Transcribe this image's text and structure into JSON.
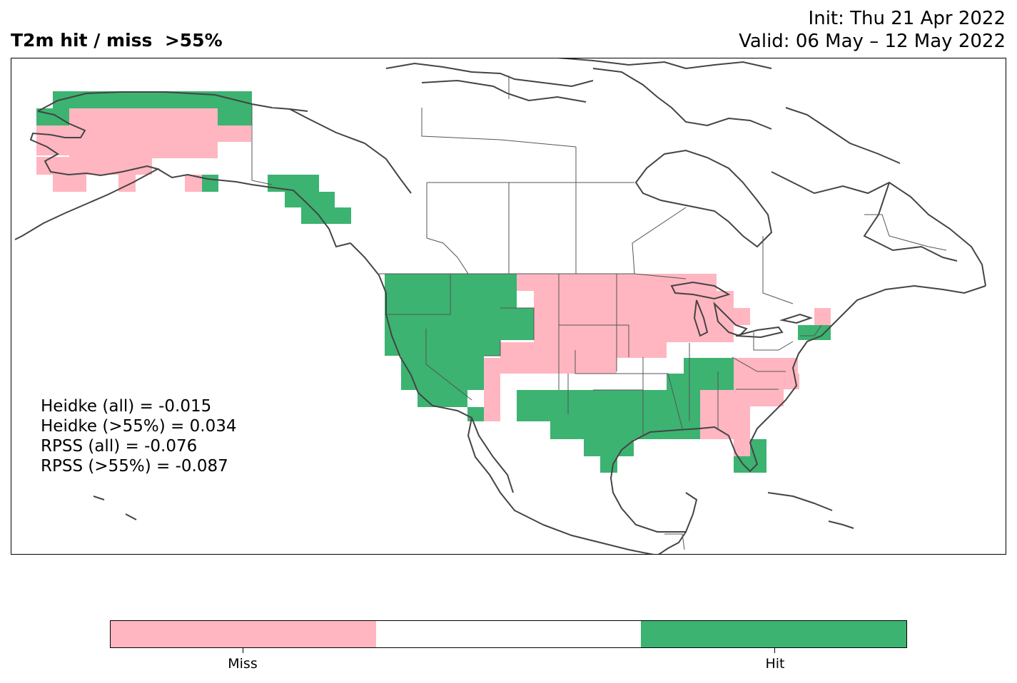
{
  "title": "T2m hit / miss  >55%",
  "init": "Init: Thu 21 Apr 2022",
  "valid": "Valid: 06 May – 12 May 2022",
  "scores": [
    "Heidke (all) = -0.015",
    "Heidke (>55%) = 0.034",
    "RPSS (all) = -0.076",
    "RPSS (>55%) = -0.087"
  ],
  "colors": {
    "miss": "#ffb6c1",
    "neutral": "#ffffff",
    "hit": "#3cb371",
    "coast": "#444444",
    "border": "#555555"
  },
  "colorbar": {
    "segments": [
      "#ffb6c1",
      "#ffffff",
      "#3cb371"
    ],
    "labels": [
      "Miss",
      "Hit"
    ]
  }
}
